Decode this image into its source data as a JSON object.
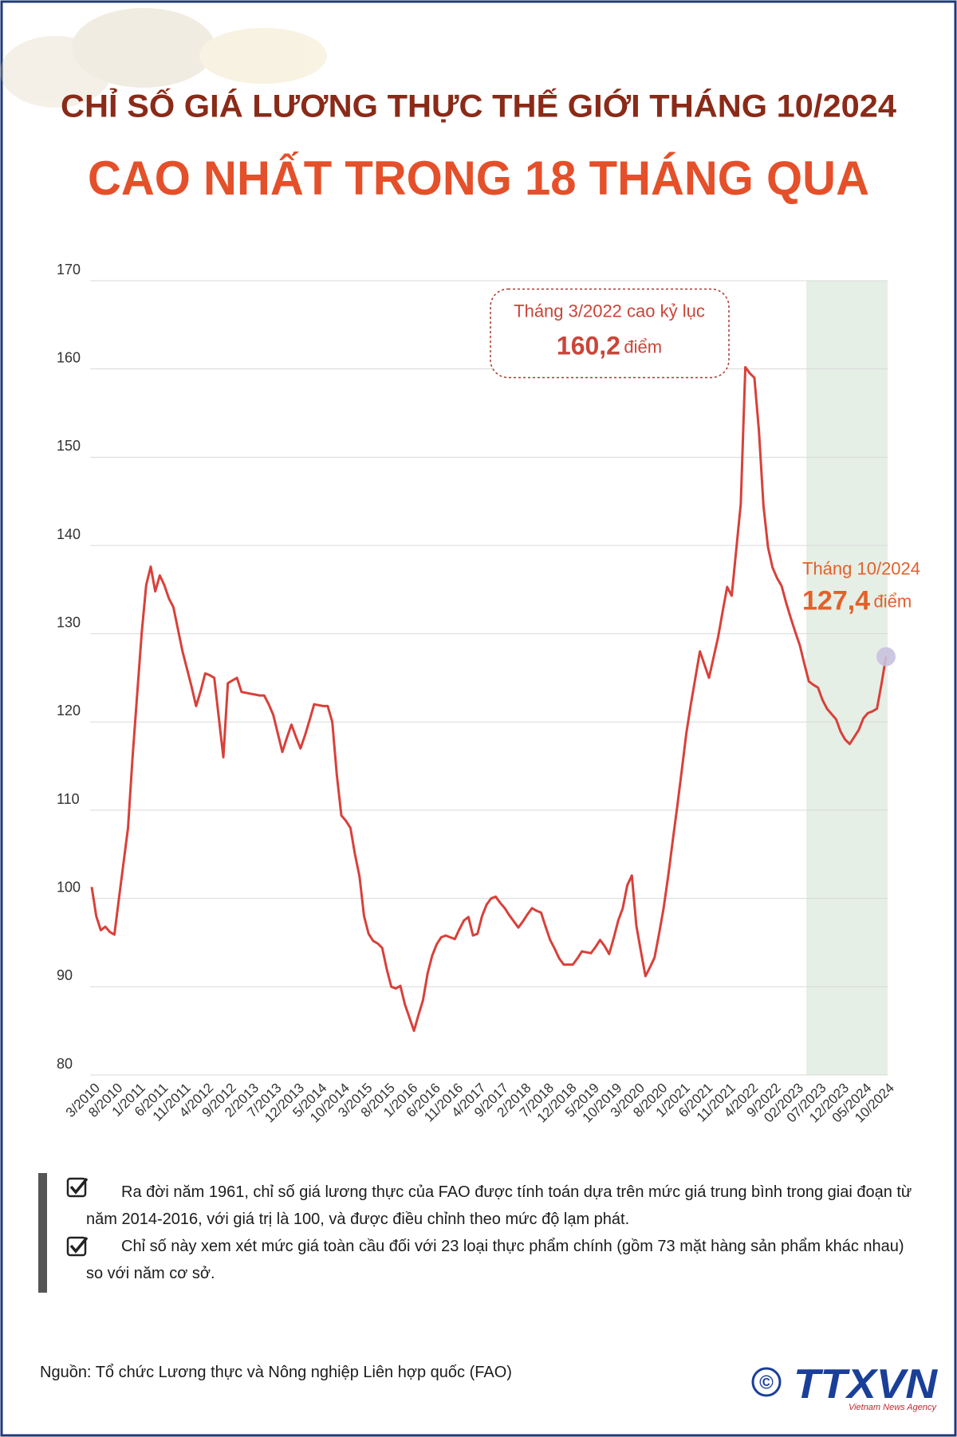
{
  "chart_data": {
    "type": "line",
    "title": "CHỈ SỐ GIÁ LƯƠNG THỰC THẾ GIỚI THÁNG 10/2024",
    "subtitle": "CAO NHẤT TRONG 18 THÁNG QUA",
    "categories": [
      "3/2010",
      null,
      null,
      null,
      null,
      "8/2010",
      null,
      null,
      null,
      null,
      "1/2011",
      null,
      null,
      null,
      null,
      "6/2011",
      null,
      null,
      null,
      null,
      "11/2011",
      null,
      null,
      null,
      null,
      "4/2012",
      null,
      null,
      null,
      null,
      "9/2012",
      null,
      null,
      null,
      null,
      "2/2013",
      null,
      null,
      null,
      null,
      "7/2013",
      null,
      null,
      null,
      null,
      "12/2013",
      null,
      null,
      null,
      null,
      "5/2014",
      null,
      null,
      null,
      null,
      "10/2014",
      null,
      null,
      null,
      null,
      "3/2015",
      null,
      null,
      null,
      null,
      "8/2015",
      null,
      null,
      null,
      null,
      "1/2016",
      null,
      null,
      null,
      null,
      "6/2016",
      null,
      null,
      null,
      null,
      "11/2016",
      null,
      null,
      null,
      null,
      "4/2017",
      null,
      null,
      null,
      null,
      "9/2017",
      null,
      null,
      null,
      null,
      "2/2018",
      null,
      null,
      null,
      null,
      "7/2018",
      null,
      null,
      null,
      null,
      "12/2018",
      null,
      null,
      null,
      null,
      "5/2019",
      null,
      null,
      null,
      null,
      "10/2019",
      null,
      null,
      null,
      null,
      "3/2020",
      null,
      null,
      null,
      null,
      "8/2020",
      null,
      null,
      null,
      null,
      "1/2021",
      null,
      null,
      null,
      null,
      "6/2021",
      null,
      null,
      null,
      null,
      "11/2021",
      null,
      null,
      null,
      null,
      "4/2022",
      null,
      null,
      null,
      null,
      "9/2022",
      null,
      null,
      null,
      null,
      "02/2023",
      null,
      null,
      null,
      null,
      "07/2023",
      null,
      null,
      null,
      null,
      "12/2023",
      null,
      null,
      null,
      null,
      "05/2024",
      null,
      null,
      null,
      null,
      "10/2024"
    ],
    "values": [
      101.3,
      98,
      96.4,
      96.8,
      96.2,
      95.9,
      100,
      104,
      108,
      116,
      123,
      130,
      135.5,
      137.6,
      134.8,
      136.6,
      135.5,
      134,
      133,
      130.5,
      128,
      126,
      124,
      121.8,
      123.5,
      125.5,
      125.3,
      125,
      120.5,
      116,
      124.4,
      124.7,
      125,
      123.4,
      123.3,
      123.2,
      123.1,
      123,
      123,
      122,
      120.8,
      118.7,
      116.6,
      118.2,
      119.7,
      118.3,
      117,
      118.5,
      120.2,
      122,
      121.9,
      121.8,
      121.8,
      120,
      114,
      109.4,
      108.8,
      108,
      105,
      102.5,
      98,
      96,
      95.2,
      94.9,
      94.4,
      92,
      90,
      89.8,
      90.1,
      88,
      86.5,
      85,
      86.8,
      88.5,
      91.5,
      93.5,
      94.8,
      95.6,
      95.8,
      95.6,
      95.4,
      96.5,
      97.5,
      97.9,
      95.8,
      96,
      98,
      99.3,
      100,
      100.2,
      99.5,
      98.9,
      98.1,
      97.4,
      96.7,
      97.4,
      98.2,
      98.9,
      98.6,
      98.4,
      96.8,
      95.3,
      94.3,
      93.2,
      92.5,
      92.5,
      92.5,
      93.2,
      94,
      93.9,
      93.8,
      94.5,
      95.3,
      94.6,
      93.7,
      95.5,
      97.5,
      98.9,
      101.5,
      102.6,
      96.9,
      94,
      91.2,
      92.2,
      93.3,
      96,
      98.9,
      102.5,
      106.5,
      110.4,
      114.5,
      118.7,
      122,
      125,
      128,
      126.5,
      125,
      127.3,
      129.6,
      132.5,
      135.3,
      134.3,
      139.5,
      144.7,
      160.2,
      159.5,
      159,
      153,
      144.5,
      139.8,
      137.5,
      136.3,
      135.4,
      133.5,
      131.8,
      130.2,
      128.7,
      126.6,
      124.6,
      124.2,
      123.9,
      122.5,
      121.5,
      120.9,
      120.3,
      118.9,
      118,
      117.5,
      118.3,
      119.1,
      120.4,
      121,
      121.2,
      121.5,
      124.3,
      127.4
    ],
    "color": "#d9403a",
    "ylim": [
      80,
      170
    ],
    "yticks": [
      80,
      90,
      100,
      110,
      120,
      130,
      140,
      150,
      160,
      170
    ],
    "grid": true,
    "annotations": [
      {
        "text": "Tháng 3/2022 cao kỷ lục",
        "value": 160.2,
        "label": "160,2",
        "unit": "điểm"
      },
      {
        "text": "Tháng 10/2024",
        "value": 127.4,
        "label": "127,4",
        "unit": "điểm"
      }
    ]
  },
  "notes": [
    "Ra đời năm 1961, chỉ số giá lương thực của FAO được tính toán dựa trên mức giá trung bình trong giai đoạn từ năm 2014-2016, với giá trị là 100, và được điều chỉnh theo mức độ lạm phát.",
    "Chỉ số này xem xét mức giá toàn cầu đối với 23 loại thực phẩm chính (gồm 73 mặt hàng sản phẩm khác nhau) so với năm cơ sở."
  ],
  "source": "Nguồn: Tổ chức Lương thực và Nông nghiệp Liên hợp quốc (FAO)",
  "logo": {
    "copyright": "©",
    "name": "TTXVN",
    "tagline": "Vietnam News Agency"
  }
}
